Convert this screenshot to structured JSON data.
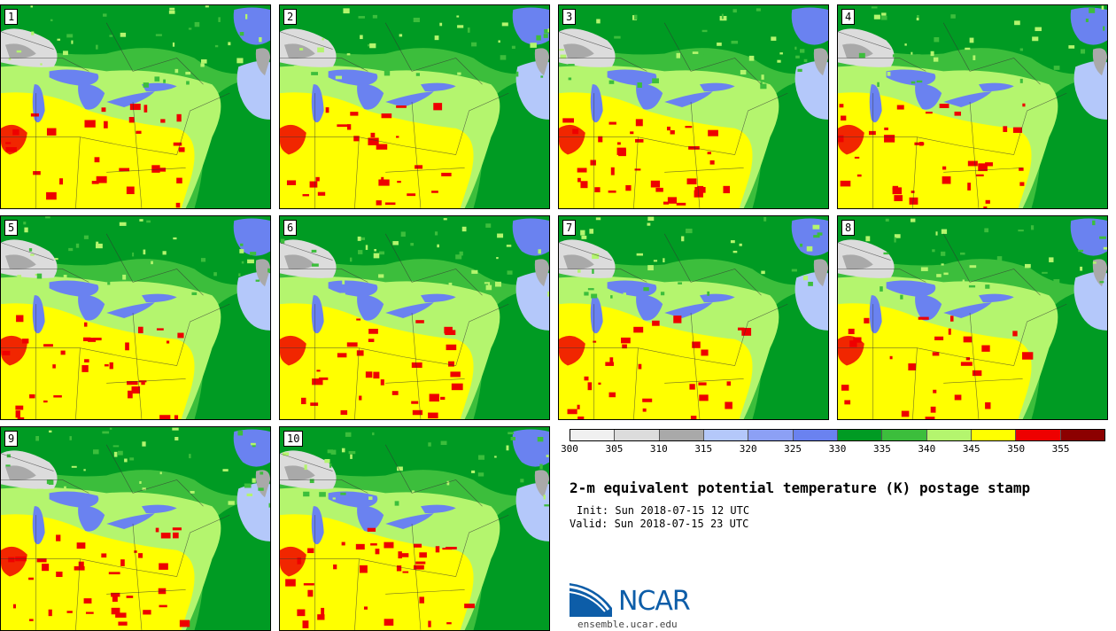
{
  "figure": {
    "title": "2-m equivalent potential temperature (K) postage stamp",
    "init": "Init: Sun 2018-07-15 12 UTC",
    "valid": "Valid: Sun 2018-07-15 23 UTC",
    "site": "ensemble.ucar.edu",
    "logo_text": "NCAR"
  },
  "members": [
    "1",
    "2",
    "3",
    "4",
    "5",
    "6",
    "7",
    "8",
    "9",
    "10"
  ],
  "colorbar": {
    "ticks": [
      "300",
      "305",
      "310",
      "315",
      "320",
      "325",
      "330",
      "335",
      "340",
      "345",
      "350",
      "355"
    ],
    "colors": [
      "#f0f0f0",
      "#dcdcdc",
      "#a9a9a9",
      "#b4c8fa",
      "#8ca0f5",
      "#6a82f0",
      "#009b23",
      "#3cbe3c",
      "#b4f56e",
      "#ffff00",
      "#ee0000",
      "#8c0000"
    ],
    "units": "K",
    "range": [
      300,
      360
    ]
  },
  "map_colors": {
    "dark_green": "#009b23",
    "green": "#3cbe3c",
    "light_green": "#b4f56e",
    "yellow": "#ffff00",
    "red": "#ee0000",
    "blue": "#6a82f0",
    "light_blue": "#b4c8fa",
    "gray": "#a9a9a9",
    "light_gray": "#dcdcdc"
  }
}
